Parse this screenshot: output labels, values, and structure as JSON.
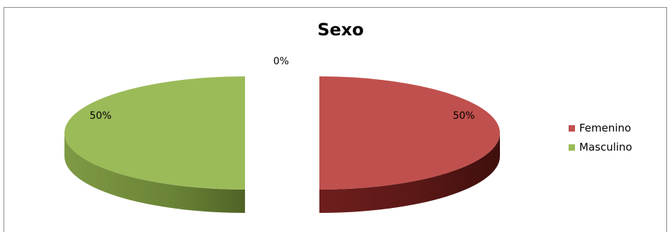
{
  "chart_data": {
    "type": "pie",
    "title": "Sexo",
    "categories": [
      "Femenino",
      "Masculino"
    ],
    "values": [
      50,
      50
    ],
    "data_labels": [
      "50%",
      "50%"
    ],
    "extra_label": "0%",
    "colors": {
      "Femenino": "#c0504d",
      "Masculino": "#9bbb59"
    },
    "style": "3d-exploded",
    "legend_position": "right"
  }
}
